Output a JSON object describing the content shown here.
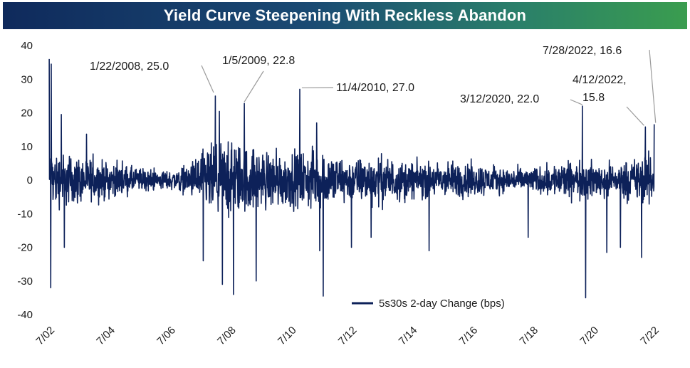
{
  "chart_data": {
    "type": "line",
    "title": "Yield Curve Steepening With Reckless Abandon",
    "series": [
      {
        "name": "5s30s 2-day Change (bps)",
        "color": "#0d2159"
      }
    ],
    "ylim": [
      -40,
      40
    ],
    "yticks": [
      "40",
      "30",
      "20",
      "10",
      "0",
      "-10",
      "-20",
      "-30",
      "-40"
    ],
    "xticks": [
      "7/02",
      "7/04",
      "7/06",
      "7/08",
      "7/10",
      "7/12",
      "7/14",
      "7/16",
      "7/18",
      "7/20",
      "7/22"
    ],
    "xlim": [
      2002.5,
      2022.6
    ],
    "grid": false,
    "legend_position": "bottom-center",
    "annotations": [
      {
        "label": "1/22/2008, 25.0",
        "x": 2008.05,
        "y": 25.0
      },
      {
        "label": "1/5/2009, 22.8",
        "x": 2009.01,
        "y": 22.8
      },
      {
        "label": "11/4/2010, 27.0",
        "x": 2010.84,
        "y": 27.0
      },
      {
        "label": "3/12/2020, 22.0",
        "x": 2020.19,
        "y": 22.0
      },
      {
        "label": "4/12/2022,",
        "label2": "15.8",
        "x": 2022.28,
        "y": 15.8
      },
      {
        "label": "7/28/2022, 16.6",
        "x": 2022.57,
        "y": 16.6
      }
    ],
    "notable_points": [
      {
        "x": 2002.55,
        "y": 36.0
      },
      {
        "x": 2002.62,
        "y": 34.5
      },
      {
        "x": 2002.6,
        "y": -32.0
      },
      {
        "x": 2002.95,
        "y": 19.5
      },
      {
        "x": 2003.05,
        "y": -20.0
      },
      {
        "x": 2007.65,
        "y": -24.0
      },
      {
        "x": 2008.05,
        "y": 25.0
      },
      {
        "x": 2008.28,
        "y": -31.0
      },
      {
        "x": 2008.65,
        "y": -34.0
      },
      {
        "x": 2009.01,
        "y": 22.8
      },
      {
        "x": 2009.4,
        "y": -30.0
      },
      {
        "x": 2010.84,
        "y": 27.0
      },
      {
        "x": 2011.5,
        "y": -21.0
      },
      {
        "x": 2011.62,
        "y": -34.5
      },
      {
        "x": 2011.4,
        "y": 17.0
      },
      {
        "x": 2012.55,
        "y": -20.0
      },
      {
        "x": 2013.2,
        "y": -17.0
      },
      {
        "x": 2015.12,
        "y": -21.0
      },
      {
        "x": 2018.4,
        "y": -17.0
      },
      {
        "x": 2020.19,
        "y": 22.0
      },
      {
        "x": 2020.3,
        "y": -35.0
      },
      {
        "x": 2021.0,
        "y": -21.5
      },
      {
        "x": 2021.45,
        "y": -20.0
      },
      {
        "x": 2022.15,
        "y": -23.0
      },
      {
        "x": 2022.28,
        "y": 15.8
      },
      {
        "x": 2022.57,
        "y": 16.6
      }
    ],
    "typical_amplitude_by_year": [
      [
        2002.5,
        10
      ],
      [
        2003.5,
        8
      ],
      [
        2004.5,
        6
      ],
      [
        2005.5,
        4
      ],
      [
        2006.5,
        3
      ],
      [
        2007.2,
        5
      ],
      [
        2007.7,
        11
      ],
      [
        2008.5,
        13
      ],
      [
        2009.5,
        10
      ],
      [
        2010.5,
        9
      ],
      [
        2011.5,
        10
      ],
      [
        2012.5,
        7
      ],
      [
        2013.5,
        8
      ],
      [
        2014.5,
        6
      ],
      [
        2015.5,
        6
      ],
      [
        2016.5,
        6
      ],
      [
        2017.5,
        4
      ],
      [
        2018.5,
        4
      ],
      [
        2019.5,
        6
      ],
      [
        2020.5,
        6
      ],
      [
        2021.5,
        6
      ],
      [
        2022.6,
        9
      ]
    ]
  }
}
